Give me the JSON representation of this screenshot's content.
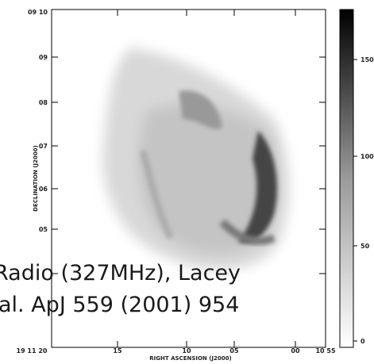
{
  "plot": {
    "x_label": "RIGHT ASCENSION (J2000)",
    "y_label": "DECLINATION (J2000)",
    "x_ticks": [
      "19 11 20",
      "15",
      "10",
      "05",
      "00",
      "10 55"
    ],
    "y_ticks": [
      "09 10",
      "09",
      "08",
      "07",
      "06",
      "05"
    ],
    "colorbar_ticks": [
      "150",
      "100",
      "50",
      "0"
    ]
  },
  "caption": {
    "lines": [
      "Radio (327MHz), Lacey",
      "al. ApJ 559 (2001) 954"
    ]
  }
}
